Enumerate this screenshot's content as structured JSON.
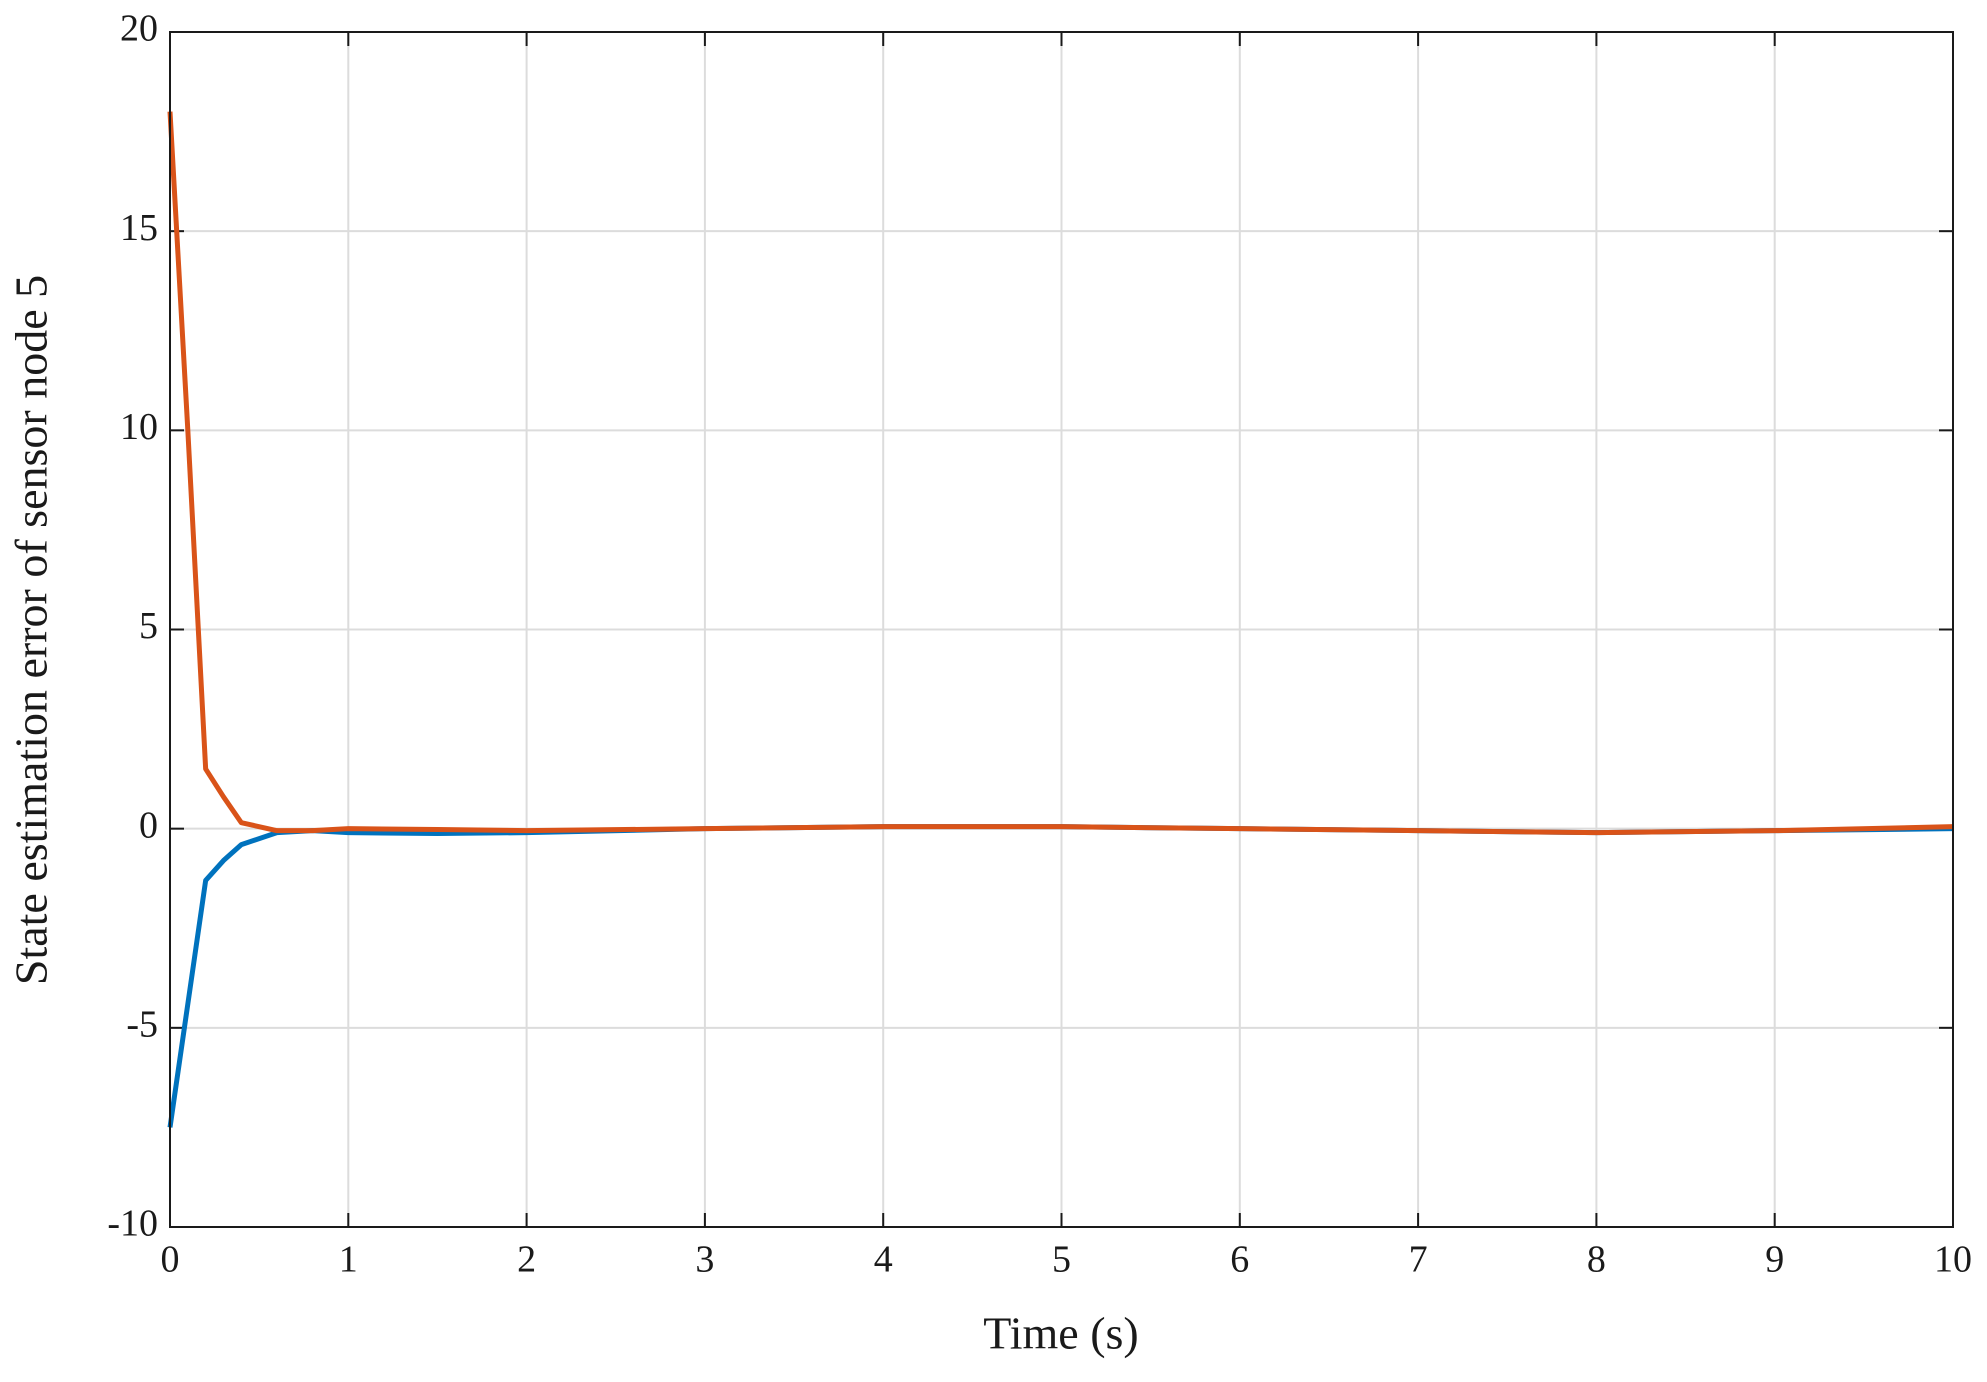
{
  "chart_data": {
    "type": "line",
    "xlabel": "Time (s)",
    "ylabel": "State estimation error of sensor node 5",
    "x": [
      0,
      0.1,
      0.2,
      0.3,
      0.4,
      0.6,
      0.8,
      1,
      1.5,
      2,
      3,
      4,
      5,
      6,
      7,
      8,
      9,
      10
    ],
    "series": [
      {
        "color": "#0072bd",
        "values": [
          -7.5,
          -4.4,
          -1.3,
          -0.8,
          -0.4,
          -0.1,
          -0.05,
          -0.1,
          -0.12,
          -0.1,
          0,
          0.05,
          0.05,
          0,
          -0.05,
          -0.1,
          -0.05,
          0
        ]
      },
      {
        "color": "#d95319",
        "values": [
          18,
          10,
          1.5,
          0.8,
          0.15,
          -0.05,
          -0.05,
          0,
          -0.02,
          -0.05,
          0,
          0.05,
          0.05,
          0,
          -0.05,
          -0.1,
          -0.05,
          0.05
        ]
      }
    ],
    "xlim": [
      0,
      10
    ],
    "xticks": [
      0,
      1,
      2,
      3,
      4,
      5,
      6,
      7,
      8,
      9,
      10
    ],
    "ylim": [
      -10,
      20
    ],
    "yticks": [
      -10,
      -5,
      0,
      5,
      10,
      15,
      20
    ],
    "grid": true
  }
}
